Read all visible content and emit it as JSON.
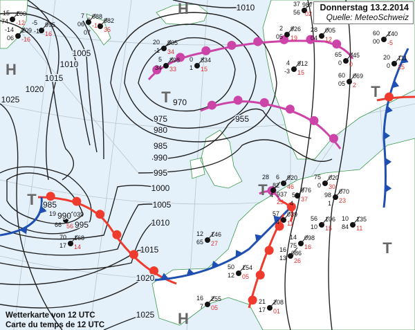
{
  "header": {
    "date": "Donnerstag 13.2.2014",
    "source": "Quelle: MeteoSchweiz"
  },
  "caption": {
    "line_de": "Wetterkarte von 12 UTC",
    "line_fr": "Carte du temps de 12 UTC"
  },
  "colors": {
    "sea": "#e4f1fb",
    "land": "#ffffff",
    "coast": "#3a9a4a",
    "isobar": "#222222",
    "warm_front": "#ee3b2e",
    "cold_front": "#1f4fb0",
    "occlusion": "#cc44a8",
    "pressure_symbol": "#666666",
    "dewpoint_text": "#e03030"
  },
  "pressure_centers": [
    {
      "type": "H",
      "label": "H"
    },
    {
      "type": "H",
      "label": "H"
    },
    {
      "type": "H",
      "label": "H"
    },
    {
      "type": "T",
      "label": "T"
    },
    {
      "type": "T",
      "label": "T"
    },
    {
      "type": "T",
      "label": "T"
    },
    {
      "type": "T",
      "label": "T"
    },
    {
      "type": "T",
      "label": "T"
    }
  ],
  "isobar_labels": [
    "1025",
    "1020",
    "1015",
    "1010",
    "1005",
    "1010",
    "970",
    "975",
    "980",
    "985",
    "990",
    "995",
    "955",
    "985",
    "990",
    "995",
    "1000",
    "1005",
    "1010",
    "1015",
    "1020",
    "1025"
  ],
  "stations": [
    {
      "p": "100",
      "t": "-15",
      "d": "-12",
      "w": "74"
    },
    {
      "p": "209",
      "t": "-14",
      "d": "-16",
      "w": "06"
    },
    {
      "p": "088",
      "t": "7",
      "d": "-16",
      "w": "06"
    },
    {
      "p": "995",
      "t": "-5",
      "d": "16",
      "w": "-13"
    },
    {
      "p": "982",
      "t": "6",
      "d": "35",
      "w": "07"
    },
    {
      "p": "905",
      "t": "20",
      "d": "34",
      "w": "-1"
    },
    {
      "p": "898",
      "t": "5",
      "d": "33",
      "w": "34"
    },
    {
      "p": "834",
      "t": "0",
      "d": "15",
      "w": "1"
    },
    {
      "p": "987",
      "t": "37",
      "d": "02",
      "w": "56"
    },
    {
      "p": "926",
      "t": "2",
      "d": "19",
      "w": "05"
    },
    {
      "p": "005",
      "t": "28",
      "d": "12",
      "w": "04"
    },
    {
      "p": "912",
      "t": "4",
      "d": "15",
      "w": "-3"
    },
    {
      "p": "045",
      "t": "65",
      "d": "0",
      "w": "0"
    },
    {
      "p": "140",
      "t": "60",
      "d": "-5",
      "w": "00"
    },
    {
      "p": "111",
      "t": "20",
      "d": "15",
      "w": "0"
    },
    {
      "p": "069",
      "t": "60",
      "d": "2",
      "w": "05"
    },
    {
      "p": "039",
      "t": "19",
      "d": "56",
      "w": "66"
    },
    {
      "p": "168",
      "t": "70",
      "d": "14",
      "w": "17"
    },
    {
      "p": "920",
      "t": "6",
      "d": "46",
      "w": "82"
    },
    {
      "p": "937",
      "t": "28",
      "d": "23",
      "w": "4"
    },
    {
      "p": "976",
      "t": "58",
      "d": "37",
      "w": "4"
    },
    {
      "p": "020",
      "t": "75",
      "d": "30",
      "w": "0"
    },
    {
      "p": "070",
      "t": "98",
      "d": "23",
      "w": "1"
    },
    {
      "p": "039",
      "t": "57",
      "d": "11",
      "w": "4"
    },
    {
      "p": "106",
      "t": "56",
      "d": "15",
      "w": "10"
    },
    {
      "p": "098",
      "t": "14",
      "d": "16",
      "w": "75"
    },
    {
      "p": "135",
      "t": "10",
      "d": "11",
      "w": "84"
    },
    {
      "p": "086",
      "t": "16",
      "d": "26",
      "w": "13"
    },
    {
      "p": "146",
      "t": "12",
      "d": "27",
      "w": "65"
    },
    {
      "p": "154",
      "t": "50",
      "d": "05",
      "w": "12"
    },
    {
      "p": "255",
      "t": "16",
      "d": "05",
      "w": "7"
    },
    {
      "p": "208",
      "t": "21",
      "d": "01",
      "w": "17"
    }
  ]
}
